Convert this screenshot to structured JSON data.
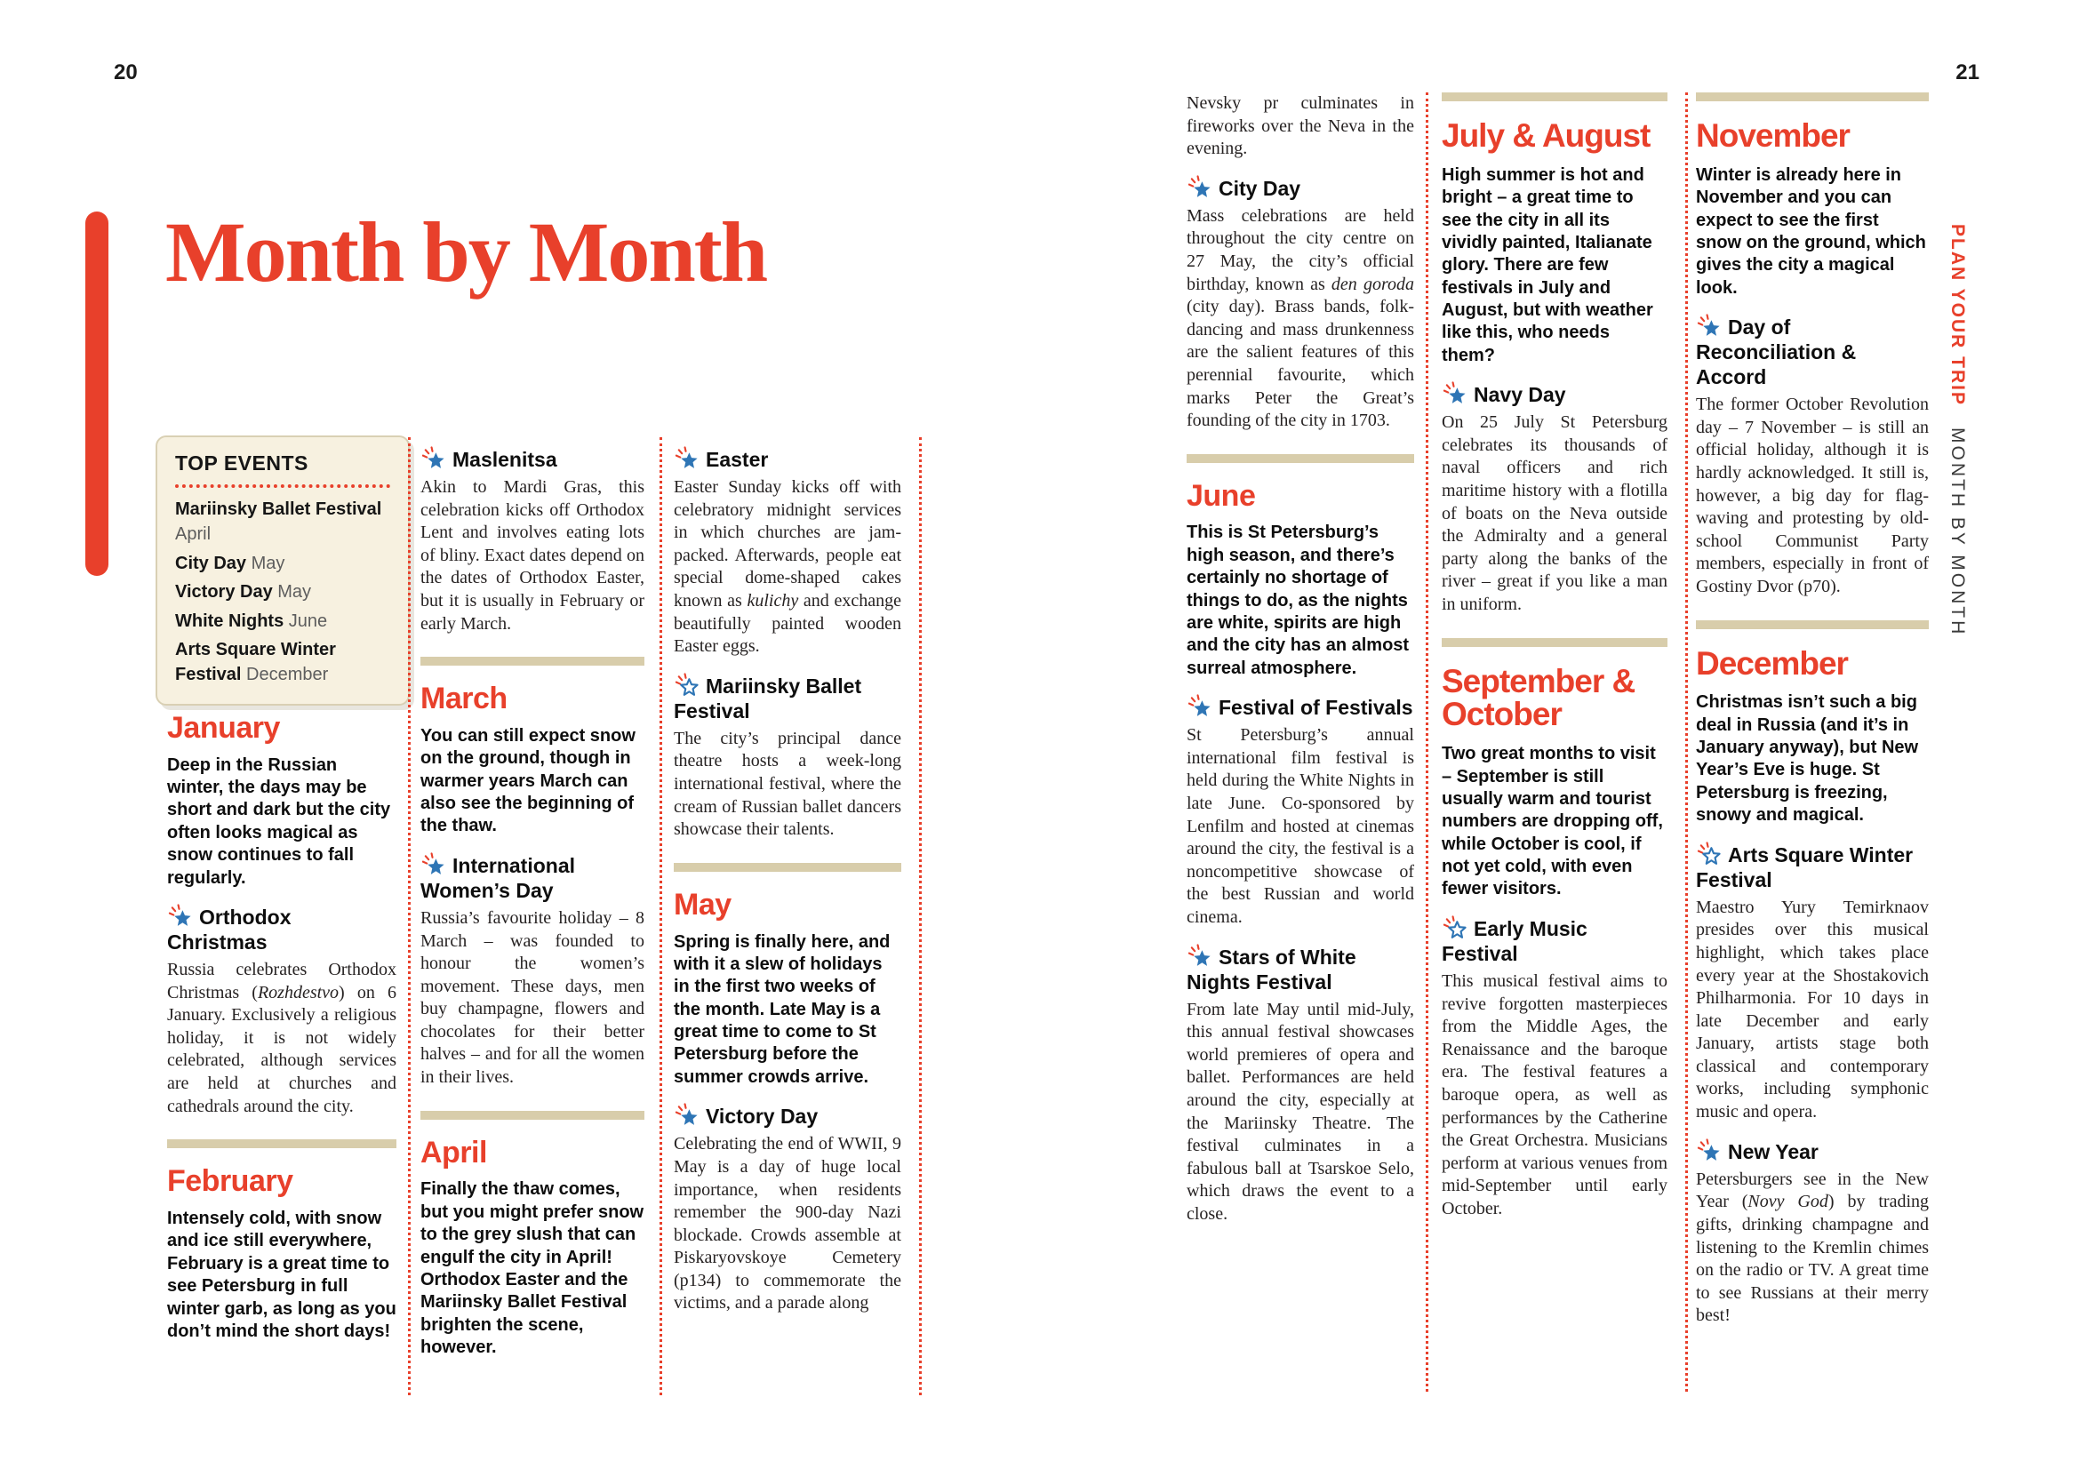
{
  "pages": {
    "left_number": "20",
    "right_number": "21"
  },
  "title": "Month by Month",
  "sidebar": {
    "plan_your_trip": "PLAN YOUR TRIP",
    "section": "MONTH BY MONTH"
  },
  "colors": {
    "accent_red": "#e8402b",
    "divider_tan": "#d8cdab",
    "box_cream": "#f7f1e0",
    "star_blue": "#2e75b5"
  },
  "top_events": {
    "heading": "TOP EVENTS",
    "items": [
      {
        "name": "Mariinsky Ballet Festival",
        "month": "April"
      },
      {
        "name": "City Day",
        "month": "May"
      },
      {
        "name": "Victory Day",
        "month": "May"
      },
      {
        "name": "White Nights",
        "month": "June"
      },
      {
        "name": "Arts Square Winter Festival",
        "month": "December"
      }
    ]
  },
  "columns": [
    {
      "blocks": [
        {
          "type": "month",
          "title": "January",
          "intro": "Deep in the Russian winter, the days may be short and dark but the city often looks magical as snow continues to fall regularly."
        },
        {
          "type": "event",
          "icon": "fireworks-star",
          "title": "Orthodox Christmas",
          "body": "Russia celebrates Orthodox Christmas (*Rozhdestvo*) on 6 January. Exclusively a religious holiday, it is not widely celebrated, although services are held at churches and cathedrals around the city."
        },
        {
          "type": "divider"
        },
        {
          "type": "month",
          "title": "February",
          "intro": "Intensely cold, with snow and ice still everywhere, February is a great time to see Petersburg in full winter garb, as long as you don’t mind the short days!"
        }
      ]
    },
    {
      "blocks": [
        {
          "type": "event",
          "icon": "fireworks-star",
          "title": "Maslenitsa",
          "body": "Akin to Mardi Gras, this celebration kicks off Orthodox Lent and involves eating lots of bliny. Exact dates depend on the dates of Orthodox Easter, but it is usually in February or early March."
        },
        {
          "type": "divider"
        },
        {
          "type": "month",
          "title": "March",
          "intro": "You can still expect snow on the ground, though in warmer years March can also see the beginning of the thaw."
        },
        {
          "type": "event",
          "icon": "fireworks-star",
          "title": "International Women’s Day",
          "body": "Russia’s favourite holiday – 8 March – was founded to honour the women’s movement. These days, men buy champagne, flowers and chocolates for their better halves – and for all the women in their lives."
        },
        {
          "type": "divider"
        },
        {
          "type": "month",
          "title": "April",
          "intro": "Finally the thaw comes, but you might prefer snow to the grey slush that can engulf the city in April! Orthodox Easter and the Mariinsky Ballet Festival brighten the scene, however."
        }
      ]
    },
    {
      "blocks": [
        {
          "type": "event",
          "icon": "fireworks-star",
          "title": "Easter",
          "body": "Easter Sunday kicks off with celebratory midnight services in which churches are jam-packed. Afterwards, people eat special dome-shaped cakes known as *kulichy* and exchange beautifully painted wooden Easter eggs."
        },
        {
          "type": "event",
          "icon": "star-outline",
          "title": "Mariinsky Ballet Festival",
          "body": "The city’s principal dance theatre hosts a week-long international festival, where the cream of Russian ballet dancers showcase their talents."
        },
        {
          "type": "divider"
        },
        {
          "type": "month",
          "title": "May",
          "intro": "Spring is finally here, and with it a slew of holidays in the first two weeks of the month. Late May is a great time to come to St Petersburg before the summer crowds arrive."
        },
        {
          "type": "event",
          "icon": "fireworks-star",
          "title": "Victory Day",
          "body": "Celebrating the end of WWII, 9 May is a day of huge local importance, when residents remember the 900-day Nazi blockade. Crowds assemble at Piskaryovskoye Cemetery (p134) to commemorate the victims, and a parade along"
        }
      ]
    },
    {
      "blocks": [
        {
          "type": "text",
          "text": "Nevsky pr culminates in fireworks over the Neva in the evening."
        },
        {
          "type": "event",
          "icon": "fireworks-star",
          "title": "City Day",
          "body": "Mass celebrations are held throughout the city centre on 27 May, the city’s official birthday, known as *den goroda* (city day). Brass bands, folk-dancing and mass drunkenness are the salient features of this perennial favourite, which marks Peter the Great’s founding of the city in 1703."
        },
        {
          "type": "divider"
        },
        {
          "type": "month",
          "title": "June",
          "intro": "This is St Petersburg’s high season, and there’s certainly no shortage of things to do, as the nights are white, spirits are high and the city has an almost surreal atmosphere."
        },
        {
          "type": "event",
          "icon": "fireworks-star",
          "title": "Festival of Festivals",
          "body": "St Petersburg’s annual international film festival is held during the White Nights in late June. Co-sponsored by Lenfilm and hosted at cinemas around the city, the festival is a noncompetitive showcase of the best Russian and world cinema."
        },
        {
          "type": "event",
          "icon": "fireworks-star",
          "title": "Stars of White Nights Festival",
          "body": "From late May until mid-July, this annual festival showcases world premieres of opera and ballet. Performances are held around the city, especially at the Mariinsky Theatre. The festival culminates in a fabulous ball at Tsarskoe Selo, which draws the event to a close."
        }
      ]
    },
    {
      "blocks": [
        {
          "type": "divider"
        },
        {
          "type": "month",
          "big": true,
          "title": "July & August",
          "intro": "High summer is hot and bright – a great time to see the city in all its vividly painted, Italianate glory. There are few festivals in July and August, but with weather like this, who needs them?"
        },
        {
          "type": "event",
          "icon": "fireworks-star",
          "title": "Navy Day",
          "body": "On 25 July St Petersburg celebrates its thousands of naval officers and rich maritime history with a flotilla of boats on the Neva outside the Admiralty and a general party along the banks of the river – great if you like a man in uniform."
        },
        {
          "type": "divider"
        },
        {
          "type": "month",
          "big": true,
          "title": "September & October",
          "intro": "Two great months to visit – September is still usually warm and tourist numbers are dropping off, while October is cool, if not yet cold, with even fewer visitors."
        },
        {
          "type": "event",
          "icon": "star-outline",
          "title": "Early Music Festival",
          "body": "This musical festival aims to revive forgotten masterpieces from the Middle Ages, the Renaissance and the baroque era. The festival features a baroque opera, as well as performances by the Catherine the Great Orchestra. Musicians perform at various venues from mid-September until early October."
        }
      ]
    },
    {
      "blocks": [
        {
          "type": "divider"
        },
        {
          "type": "month",
          "big": true,
          "title": "November",
          "intro": "Winter is already here in November and you can expect to see the first snow on the ground, which gives the city a magical look."
        },
        {
          "type": "event",
          "icon": "fireworks-star",
          "title": "Day of Reconciliation & Accord",
          "body": "The former October Revolution day – 7 November – is still an official holiday, although it is hardly acknowledged. It still is, however, a big day for flag-waving and protesting by old-school Communist Party members, especially in front of Gostiny Dvor (p70)."
        },
        {
          "type": "divider"
        },
        {
          "type": "month",
          "big": true,
          "title": "December",
          "intro": "Christmas isn’t such a big deal in Russia (and it’s in January anyway), but New Year’s Eve is huge. St Petersburg is freezing, snowy and magical."
        },
        {
          "type": "event",
          "icon": "star-outline",
          "title": "Arts Square Winter Festival",
          "body": "Maestro Yury Temirknaov presides over this musical highlight, which takes place every year at the Shostakovich Philharmonia. For 10 days in late December and early January, artists stage both classical and contemporary works, including symphonic music and opera."
        },
        {
          "type": "event",
          "icon": "fireworks-star",
          "title": "New Year",
          "body": "Petersburgers see in the New Year (*Novy God*) by trading gifts, drinking champagne and listening to the Kremlin chimes on the radio or TV. A great time to see Russians at their merry best!"
        }
      ]
    }
  ]
}
